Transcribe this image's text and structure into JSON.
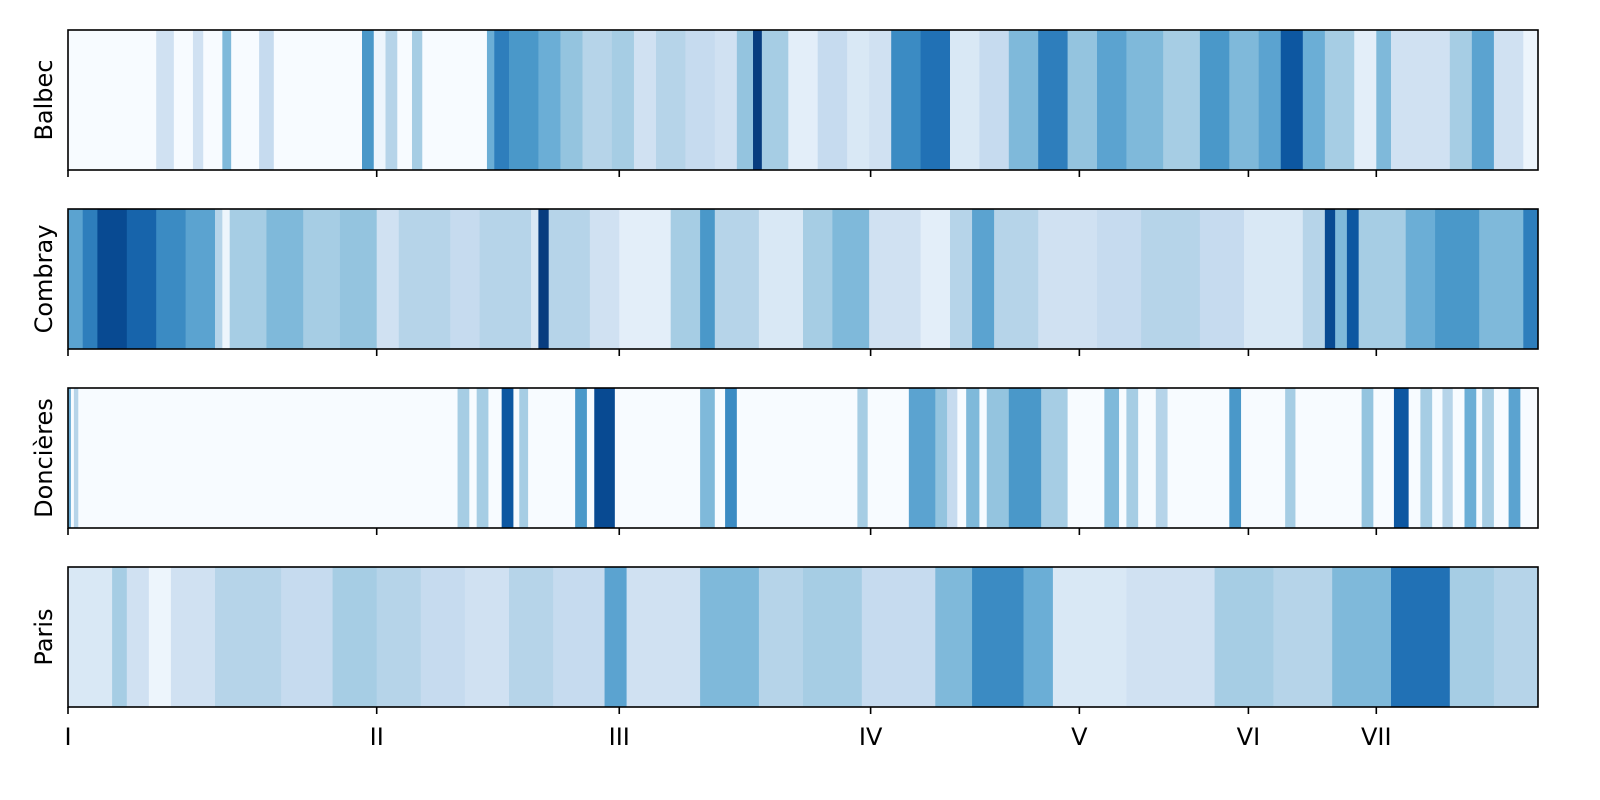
{
  "chart_data": {
    "type": "heatmap",
    "colormap": "Blues",
    "title": "",
    "xlabel": "",
    "ylabel": "",
    "x_tick_labels": [
      "I",
      "II",
      "III",
      "IV",
      "V",
      "VI",
      "VII"
    ],
    "x_tick_positions": [
      0.0,
      0.21,
      0.375,
      0.546,
      0.688,
      0.803,
      0.89
    ],
    "rows": [
      "Balbec",
      "Combray",
      "Doncières",
      "Paris"
    ],
    "series": [
      {
        "name": "Balbec",
        "segments": [
          [
            0.0,
            0.06,
            0.0
          ],
          [
            0.06,
            0.072,
            0.2
          ],
          [
            0.072,
            0.085,
            0.0
          ],
          [
            0.085,
            0.092,
            0.2
          ],
          [
            0.092,
            0.105,
            0.0
          ],
          [
            0.105,
            0.111,
            0.45
          ],
          [
            0.111,
            0.13,
            0.0
          ],
          [
            0.13,
            0.14,
            0.25
          ],
          [
            0.14,
            0.2,
            0.0
          ],
          [
            0.2,
            0.208,
            0.6
          ],
          [
            0.208,
            0.216,
            0.05
          ],
          [
            0.216,
            0.224,
            0.3
          ],
          [
            0.224,
            0.234,
            0.0
          ],
          [
            0.234,
            0.241,
            0.35
          ],
          [
            0.241,
            0.285,
            0.0
          ],
          [
            0.285,
            0.29,
            0.5
          ],
          [
            0.29,
            0.3,
            0.7
          ],
          [
            0.3,
            0.32,
            0.6
          ],
          [
            0.32,
            0.335,
            0.5
          ],
          [
            0.335,
            0.35,
            0.4
          ],
          [
            0.35,
            0.37,
            0.3
          ],
          [
            0.37,
            0.385,
            0.35
          ],
          [
            0.385,
            0.4,
            0.2
          ],
          [
            0.4,
            0.42,
            0.3
          ],
          [
            0.42,
            0.44,
            0.25
          ],
          [
            0.44,
            0.455,
            0.2
          ],
          [
            0.455,
            0.466,
            0.4
          ],
          [
            0.466,
            0.472,
            0.95
          ],
          [
            0.472,
            0.49,
            0.35
          ],
          [
            0.49,
            0.51,
            0.1
          ],
          [
            0.51,
            0.53,
            0.25
          ],
          [
            0.53,
            0.545,
            0.15
          ],
          [
            0.545,
            0.56,
            0.2
          ],
          [
            0.56,
            0.58,
            0.65
          ],
          [
            0.58,
            0.6,
            0.75
          ],
          [
            0.6,
            0.62,
            0.15
          ],
          [
            0.62,
            0.64,
            0.25
          ],
          [
            0.64,
            0.66,
            0.45
          ],
          [
            0.66,
            0.68,
            0.7
          ],
          [
            0.68,
            0.7,
            0.4
          ],
          [
            0.7,
            0.72,
            0.55
          ],
          [
            0.72,
            0.745,
            0.45
          ],
          [
            0.745,
            0.77,
            0.35
          ],
          [
            0.77,
            0.79,
            0.6
          ],
          [
            0.79,
            0.81,
            0.45
          ],
          [
            0.81,
            0.825,
            0.55
          ],
          [
            0.825,
            0.84,
            0.85
          ],
          [
            0.84,
            0.855,
            0.5
          ],
          [
            0.855,
            0.875,
            0.35
          ],
          [
            0.875,
            0.89,
            0.1
          ],
          [
            0.89,
            0.9,
            0.45
          ],
          [
            0.9,
            0.94,
            0.2
          ],
          [
            0.94,
            0.955,
            0.35
          ],
          [
            0.955,
            0.97,
            0.55
          ],
          [
            0.97,
            0.99,
            0.2
          ],
          [
            0.99,
            1.0,
            0.05
          ]
        ]
      },
      {
        "name": "Combray",
        "segments": [
          [
            0.0,
            0.01,
            0.55
          ],
          [
            0.01,
            0.02,
            0.7
          ],
          [
            0.02,
            0.04,
            0.9
          ],
          [
            0.04,
            0.06,
            0.8
          ],
          [
            0.06,
            0.08,
            0.65
          ],
          [
            0.08,
            0.1,
            0.55
          ],
          [
            0.1,
            0.105,
            0.3
          ],
          [
            0.105,
            0.11,
            0.05
          ],
          [
            0.11,
            0.135,
            0.35
          ],
          [
            0.135,
            0.16,
            0.45
          ],
          [
            0.16,
            0.185,
            0.35
          ],
          [
            0.185,
            0.21,
            0.4
          ],
          [
            0.21,
            0.225,
            0.2
          ],
          [
            0.225,
            0.26,
            0.3
          ],
          [
            0.26,
            0.28,
            0.25
          ],
          [
            0.28,
            0.315,
            0.3
          ],
          [
            0.315,
            0.32,
            0.15
          ],
          [
            0.32,
            0.327,
            0.95
          ],
          [
            0.327,
            0.355,
            0.3
          ],
          [
            0.355,
            0.375,
            0.2
          ],
          [
            0.375,
            0.41,
            0.1
          ],
          [
            0.41,
            0.43,
            0.35
          ],
          [
            0.43,
            0.44,
            0.6
          ],
          [
            0.44,
            0.47,
            0.3
          ],
          [
            0.47,
            0.5,
            0.15
          ],
          [
            0.5,
            0.52,
            0.35
          ],
          [
            0.52,
            0.545,
            0.45
          ],
          [
            0.545,
            0.58,
            0.2
          ],
          [
            0.58,
            0.6,
            0.1
          ],
          [
            0.6,
            0.615,
            0.3
          ],
          [
            0.615,
            0.63,
            0.55
          ],
          [
            0.63,
            0.66,
            0.3
          ],
          [
            0.66,
            0.7,
            0.2
          ],
          [
            0.7,
            0.73,
            0.25
          ],
          [
            0.73,
            0.77,
            0.3
          ],
          [
            0.77,
            0.8,
            0.25
          ],
          [
            0.8,
            0.84,
            0.15
          ],
          [
            0.84,
            0.855,
            0.3
          ],
          [
            0.855,
            0.862,
            0.9
          ],
          [
            0.862,
            0.87,
            0.45
          ],
          [
            0.87,
            0.878,
            0.85
          ],
          [
            0.878,
            0.91,
            0.35
          ],
          [
            0.91,
            0.93,
            0.5
          ],
          [
            0.93,
            0.96,
            0.6
          ],
          [
            0.96,
            0.99,
            0.45
          ],
          [
            0.99,
            1.0,
            0.7
          ]
        ]
      },
      {
        "name": "Doncières",
        "segments": [
          [
            0.0,
            0.002,
            0.5
          ],
          [
            0.002,
            0.004,
            0.0
          ],
          [
            0.004,
            0.007,
            0.3
          ],
          [
            0.007,
            0.265,
            0.0
          ],
          [
            0.265,
            0.273,
            0.35
          ],
          [
            0.273,
            0.278,
            0.0
          ],
          [
            0.278,
            0.286,
            0.35
          ],
          [
            0.286,
            0.295,
            0.0
          ],
          [
            0.295,
            0.303,
            0.85
          ],
          [
            0.303,
            0.307,
            0.0
          ],
          [
            0.307,
            0.313,
            0.35
          ],
          [
            0.313,
            0.345,
            0.0
          ],
          [
            0.345,
            0.353,
            0.6
          ],
          [
            0.353,
            0.358,
            0.0
          ],
          [
            0.358,
            0.372,
            0.9
          ],
          [
            0.372,
            0.43,
            0.0
          ],
          [
            0.43,
            0.44,
            0.45
          ],
          [
            0.44,
            0.447,
            0.0
          ],
          [
            0.447,
            0.455,
            0.65
          ],
          [
            0.455,
            0.537,
            0.0
          ],
          [
            0.537,
            0.544,
            0.35
          ],
          [
            0.544,
            0.572,
            0.0
          ],
          [
            0.572,
            0.59,
            0.55
          ],
          [
            0.59,
            0.598,
            0.4
          ],
          [
            0.598,
            0.605,
            0.25
          ],
          [
            0.605,
            0.611,
            0.0
          ],
          [
            0.611,
            0.62,
            0.45
          ],
          [
            0.62,
            0.625,
            0.0
          ],
          [
            0.625,
            0.64,
            0.4
          ],
          [
            0.64,
            0.662,
            0.6
          ],
          [
            0.662,
            0.68,
            0.35
          ],
          [
            0.68,
            0.705,
            0.0
          ],
          [
            0.705,
            0.715,
            0.45
          ],
          [
            0.715,
            0.72,
            0.0
          ],
          [
            0.72,
            0.728,
            0.35
          ],
          [
            0.728,
            0.74,
            0.0
          ],
          [
            0.74,
            0.748,
            0.3
          ],
          [
            0.748,
            0.79,
            0.0
          ],
          [
            0.79,
            0.798,
            0.6
          ],
          [
            0.798,
            0.828,
            0.0
          ],
          [
            0.828,
            0.835,
            0.35
          ],
          [
            0.835,
            0.88,
            0.0
          ],
          [
            0.88,
            0.888,
            0.4
          ],
          [
            0.888,
            0.902,
            0.0
          ],
          [
            0.902,
            0.912,
            0.85
          ],
          [
            0.912,
            0.92,
            0.0
          ],
          [
            0.92,
            0.928,
            0.35
          ],
          [
            0.928,
            0.935,
            0.0
          ],
          [
            0.935,
            0.942,
            0.3
          ],
          [
            0.942,
            0.95,
            0.0
          ],
          [
            0.95,
            0.958,
            0.5
          ],
          [
            0.958,
            0.962,
            0.0
          ],
          [
            0.962,
            0.97,
            0.35
          ],
          [
            0.97,
            0.98,
            0.0
          ],
          [
            0.98,
            0.988,
            0.55
          ],
          [
            0.988,
            1.0,
            0.0
          ]
        ]
      },
      {
        "name": "Paris",
        "segments": [
          [
            0.0,
            0.03,
            0.15
          ],
          [
            0.03,
            0.04,
            0.35
          ],
          [
            0.04,
            0.055,
            0.2
          ],
          [
            0.055,
            0.07,
            0.05
          ],
          [
            0.07,
            0.1,
            0.2
          ],
          [
            0.1,
            0.145,
            0.3
          ],
          [
            0.145,
            0.18,
            0.25
          ],
          [
            0.18,
            0.21,
            0.35
          ],
          [
            0.21,
            0.24,
            0.3
          ],
          [
            0.24,
            0.27,
            0.25
          ],
          [
            0.27,
            0.3,
            0.2
          ],
          [
            0.3,
            0.33,
            0.3
          ],
          [
            0.33,
            0.365,
            0.25
          ],
          [
            0.365,
            0.38,
            0.55
          ],
          [
            0.38,
            0.43,
            0.2
          ],
          [
            0.43,
            0.47,
            0.45
          ],
          [
            0.47,
            0.5,
            0.3
          ],
          [
            0.5,
            0.54,
            0.35
          ],
          [
            0.54,
            0.59,
            0.25
          ],
          [
            0.59,
            0.615,
            0.45
          ],
          [
            0.615,
            0.65,
            0.65
          ],
          [
            0.65,
            0.67,
            0.5
          ],
          [
            0.67,
            0.72,
            0.15
          ],
          [
            0.72,
            0.78,
            0.2
          ],
          [
            0.78,
            0.82,
            0.35
          ],
          [
            0.82,
            0.86,
            0.3
          ],
          [
            0.86,
            0.9,
            0.45
          ],
          [
            0.9,
            0.94,
            0.75
          ],
          [
            0.94,
            0.97,
            0.35
          ],
          [
            0.97,
            1.0,
            0.3
          ]
        ]
      }
    ]
  }
}
